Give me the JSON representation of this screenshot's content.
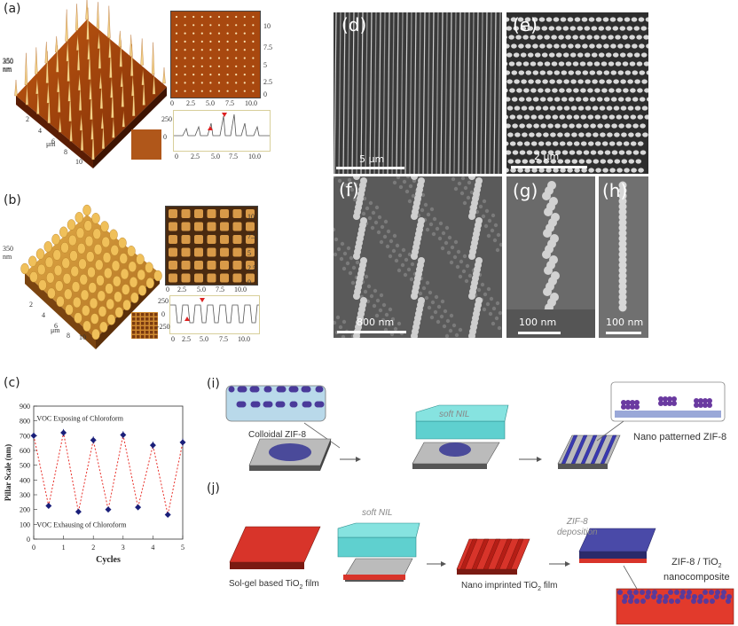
{
  "panel_labels": {
    "a": "(a)",
    "b": "(b)",
    "c": "(c)",
    "d": "(d)",
    "e": "(e)",
    "f": "(f)",
    "g": "(g)",
    "h": "(h)",
    "i": "(i)",
    "j": "(j)"
  },
  "afm": {
    "a": {
      "z_label": "350",
      "z_unit": "nm",
      "x_unit": "μm",
      "x_ticks": [
        "2",
        "4",
        "6",
        "8",
        "10"
      ],
      "map_ticks": [
        "10",
        "7.5",
        "5",
        "2.5",
        "0"
      ],
      "map_x_ticks": [
        "0",
        "2.5",
        "5.0",
        "7.5",
        "10.0"
      ],
      "profile_y_ticks": [
        "250",
        "0"
      ],
      "profile_y_unit": "nm",
      "profile_x_ticks": [
        "0",
        "2.5",
        "5.0",
        "7.5",
        "10.0"
      ]
    },
    "b": {
      "z_label": "350",
      "z_unit": "nm",
      "x_unit": "μm",
      "x_ticks": [
        "2",
        "4",
        "6",
        "8",
        "10"
      ],
      "map_ticks": [
        "10",
        "7.5",
        "5",
        "2.5",
        "0"
      ],
      "map_x_ticks": [
        "0",
        "2.5",
        "5.0",
        "7.5",
        "10.0"
      ],
      "profile_y_ticks": [
        "250",
        "0",
        "-250"
      ],
      "profile_y_unit": "nm",
      "profile_x_ticks": [
        "0",
        "2.5",
        "5.0",
        "7.5",
        "10.0"
      ]
    }
  },
  "sem": {
    "d_scale": "5 μm",
    "e_scale": "2 μm",
    "f_scale": "800 nm",
    "g_scale": "100 nm",
    "h_scale": "100 nm"
  },
  "chart_data": {
    "type": "scatter",
    "title": "",
    "xlabel": "Cycles",
    "ylabel": "Pillar Scale (nm)",
    "xlim": [
      0,
      5
    ],
    "ylim": [
      0,
      900
    ],
    "x_ticks": [
      "0",
      "1",
      "2",
      "3",
      "4",
      "5"
    ],
    "y_ticks": [
      "0",
      "100",
      "200",
      "300",
      "400",
      "500",
      "600",
      "700",
      "800",
      "900"
    ],
    "annotations": [
      "VOC Exposing of Chloroform",
      "VOC Exhausing of Chloroform"
    ],
    "series": [
      {
        "name": "Pillar Scale",
        "x": [
          0,
          0.5,
          1,
          1.5,
          2,
          2.5,
          3,
          3.5,
          4,
          4.5,
          5
        ],
        "values": [
          700,
          225,
          720,
          185,
          670,
          200,
          705,
          215,
          635,
          165,
          655
        ],
        "errors": [
          20,
          10,
          25,
          8,
          25,
          10,
          25,
          10,
          25,
          10,
          25
        ]
      }
    ],
    "colors": {
      "marker": "#1a1f7a",
      "line": "#e8302a"
    }
  },
  "diagram_i": {
    "colloidal": "Colloidal ZIF-8",
    "nil": "soft NIL",
    "result": "Nano patterned ZIF-8"
  },
  "diagram_j": {
    "nil": "soft NIL",
    "film": "Sol-gel based TiO",
    "film_sub": "2",
    "film_end": " film",
    "imprinted": "Nano imprinted TiO",
    "imprinted_sub": "2",
    "imprinted_end": " film",
    "deposition_1": "ZIF-8",
    "deposition_2": "deposition",
    "composite_1": "ZIF-8 / TiO",
    "composite_sub": "2",
    "composite_2": "nanocomposite"
  }
}
